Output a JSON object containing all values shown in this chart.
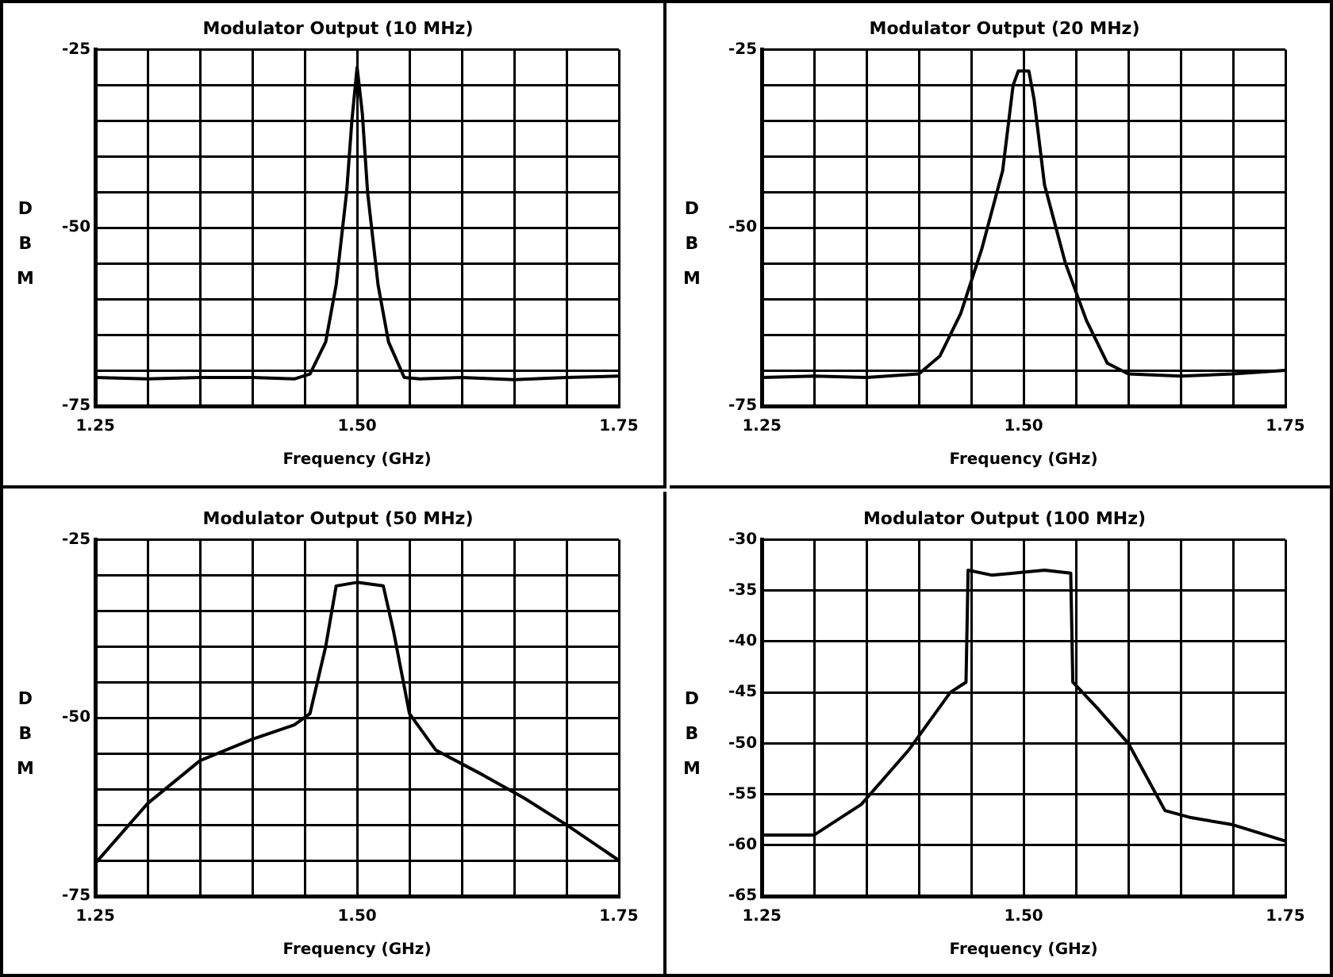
{
  "chart_data": [
    {
      "type": "line",
      "title": "Modulator Output (10 MHz)",
      "xlabel": "Frequency (GHz)",
      "ylabel": "DBM",
      "color": "#000000",
      "grid": true,
      "xlim": [
        1.25,
        1.75
      ],
      "ylim": [
        -75,
        -25
      ],
      "xticks": [
        {
          "value": 1.25,
          "label": "1.25"
        },
        {
          "value": 1.3,
          "label": null
        },
        {
          "value": 1.35,
          "label": null
        },
        {
          "value": 1.4,
          "label": null
        },
        {
          "value": 1.45,
          "label": null
        },
        {
          "value": 1.5,
          "label": "1.50"
        },
        {
          "value": 1.55,
          "label": null
        },
        {
          "value": 1.6,
          "label": null
        },
        {
          "value": 1.65,
          "label": null
        },
        {
          "value": 1.7,
          "label": null
        },
        {
          "value": 1.75,
          "label": "1.75"
        }
      ],
      "yticks": [
        -75,
        {
          "value": -70,
          "label": null
        },
        {
          "value": -65,
          "label": null
        },
        {
          "value": -60,
          "label": null
        },
        {
          "value": -55,
          "label": null
        },
        -50,
        {
          "value": -45,
          "label": null
        },
        {
          "value": -40,
          "label": null
        },
        {
          "value": -35,
          "label": null
        },
        {
          "value": -30,
          "label": null
        },
        -25
      ],
      "x": [
        1.25,
        1.3,
        1.35,
        1.4,
        1.44,
        1.455,
        1.47,
        1.48,
        1.49,
        1.495,
        1.5,
        1.505,
        1.51,
        1.52,
        1.53,
        1.545,
        1.56,
        1.6,
        1.65,
        1.7,
        1.75
      ],
      "values": [
        -71,
        -71.2,
        -71,
        -71,
        -71.2,
        -70.5,
        -66,
        -58,
        -45,
        -35,
        -27.5,
        -34,
        -45,
        -58,
        -66,
        -71,
        -71.2,
        -71,
        -71.3,
        -71,
        -70.8
      ]
    },
    {
      "type": "line",
      "title": "Modulator Output (20 MHz)",
      "xlabel": "Frequency (GHz)",
      "ylabel": "DBM",
      "color": "#000000",
      "grid": true,
      "xlim": [
        1.25,
        1.75
      ],
      "ylim": [
        -75,
        -25
      ],
      "xticks": [
        {
          "value": 1.25,
          "label": "1.25"
        },
        {
          "value": 1.3,
          "label": null
        },
        {
          "value": 1.35,
          "label": null
        },
        {
          "value": 1.4,
          "label": null
        },
        {
          "value": 1.45,
          "label": null
        },
        {
          "value": 1.5,
          "label": "1.50"
        },
        {
          "value": 1.55,
          "label": null
        },
        {
          "value": 1.6,
          "label": null
        },
        {
          "value": 1.65,
          "label": null
        },
        {
          "value": 1.7,
          "label": null
        },
        {
          "value": 1.75,
          "label": "1.75"
        }
      ],
      "yticks": [
        -75,
        {
          "value": -70,
          "label": null
        },
        {
          "value": -65,
          "label": null
        },
        {
          "value": -60,
          "label": null
        },
        {
          "value": -55,
          "label": null
        },
        -50,
        {
          "value": -45,
          "label": null
        },
        {
          "value": -40,
          "label": null
        },
        {
          "value": -35,
          "label": null
        },
        {
          "value": -30,
          "label": null
        },
        -25
      ],
      "x": [
        1.25,
        1.3,
        1.35,
        1.4,
        1.42,
        1.44,
        1.46,
        1.48,
        1.49,
        1.495,
        1.505,
        1.51,
        1.52,
        1.54,
        1.56,
        1.58,
        1.6,
        1.65,
        1.7,
        1.75
      ],
      "values": [
        -71,
        -70.8,
        -71,
        -70.5,
        -68,
        -62,
        -53,
        -42,
        -30,
        -28,
        -28,
        -32,
        -44,
        -55,
        -63,
        -69,
        -70.5,
        -70.8,
        -70.5,
        -70
      ]
    },
    {
      "type": "line",
      "title": "Modulator Output (50 MHz)",
      "xlabel": "Frequency (GHz)",
      "ylabel": "DBM",
      "color": "#000000",
      "grid": true,
      "xlim": [
        1.25,
        1.75
      ],
      "ylim": [
        -75,
        -25
      ],
      "xticks": [
        {
          "value": 1.25,
          "label": "1.25"
        },
        {
          "value": 1.3,
          "label": null
        },
        {
          "value": 1.35,
          "label": null
        },
        {
          "value": 1.4,
          "label": null
        },
        {
          "value": 1.45,
          "label": null
        },
        {
          "value": 1.5,
          "label": "1.50"
        },
        {
          "value": 1.55,
          "label": null
        },
        {
          "value": 1.6,
          "label": null
        },
        {
          "value": 1.65,
          "label": null
        },
        {
          "value": 1.7,
          "label": null
        },
        {
          "value": 1.75,
          "label": "1.75"
        }
      ],
      "yticks": [
        -75,
        {
          "value": -70,
          "label": null
        },
        {
          "value": -65,
          "label": null
        },
        {
          "value": -60,
          "label": null
        },
        {
          "value": -55,
          "label": null
        },
        -50,
        {
          "value": -45,
          "label": null
        },
        {
          "value": -40,
          "label": null
        },
        {
          "value": -35,
          "label": null
        },
        {
          "value": -30,
          "label": null
        },
        -25
      ],
      "x": [
        1.25,
        1.3,
        1.35,
        1.4,
        1.44,
        1.455,
        1.47,
        1.48,
        1.5,
        1.525,
        1.535,
        1.55,
        1.575,
        1.62,
        1.66,
        1.7,
        1.75
      ],
      "values": [
        -70.4,
        -62,
        -56,
        -53,
        -51,
        -49.4,
        -40,
        -31.5,
        -31,
        -31.5,
        -38,
        -49.4,
        -54.5,
        -58,
        -61.3,
        -65,
        -70
      ]
    },
    {
      "type": "line",
      "title": "Modulator Output (100 MHz)",
      "xlabel": "Frequency (GHz)",
      "ylabel": "DBM",
      "color": "#000000",
      "grid": true,
      "xlim": [
        1.25,
        1.75
      ],
      "ylim": [
        -65,
        -30
      ],
      "xticks": [
        {
          "value": 1.25,
          "label": "1.25"
        },
        {
          "value": 1.3,
          "label": null
        },
        {
          "value": 1.35,
          "label": null
        },
        {
          "value": 1.4,
          "label": null
        },
        {
          "value": 1.45,
          "label": null
        },
        {
          "value": 1.5,
          "label": "1.50"
        },
        {
          "value": 1.55,
          "label": null
        },
        {
          "value": 1.6,
          "label": null
        },
        {
          "value": 1.65,
          "label": null
        },
        {
          "value": 1.7,
          "label": null
        },
        {
          "value": 1.75,
          "label": "1.75"
        }
      ],
      "yticks": [
        -65,
        -60,
        -55,
        -50,
        -45,
        -40,
        -35,
        -30
      ],
      "x": [
        1.25,
        1.3,
        1.345,
        1.39,
        1.43,
        1.445,
        1.447,
        1.47,
        1.5,
        1.52,
        1.545,
        1.547,
        1.57,
        1.6,
        1.635,
        1.66,
        1.7,
        1.75
      ],
      "values": [
        -59,
        -59,
        -56,
        -50.7,
        -45,
        -44,
        -33,
        -33.5,
        -33.2,
        -33,
        -33.3,
        -44,
        -46.5,
        -50,
        -56.6,
        -57.3,
        -58,
        -59.6
      ]
    }
  ]
}
